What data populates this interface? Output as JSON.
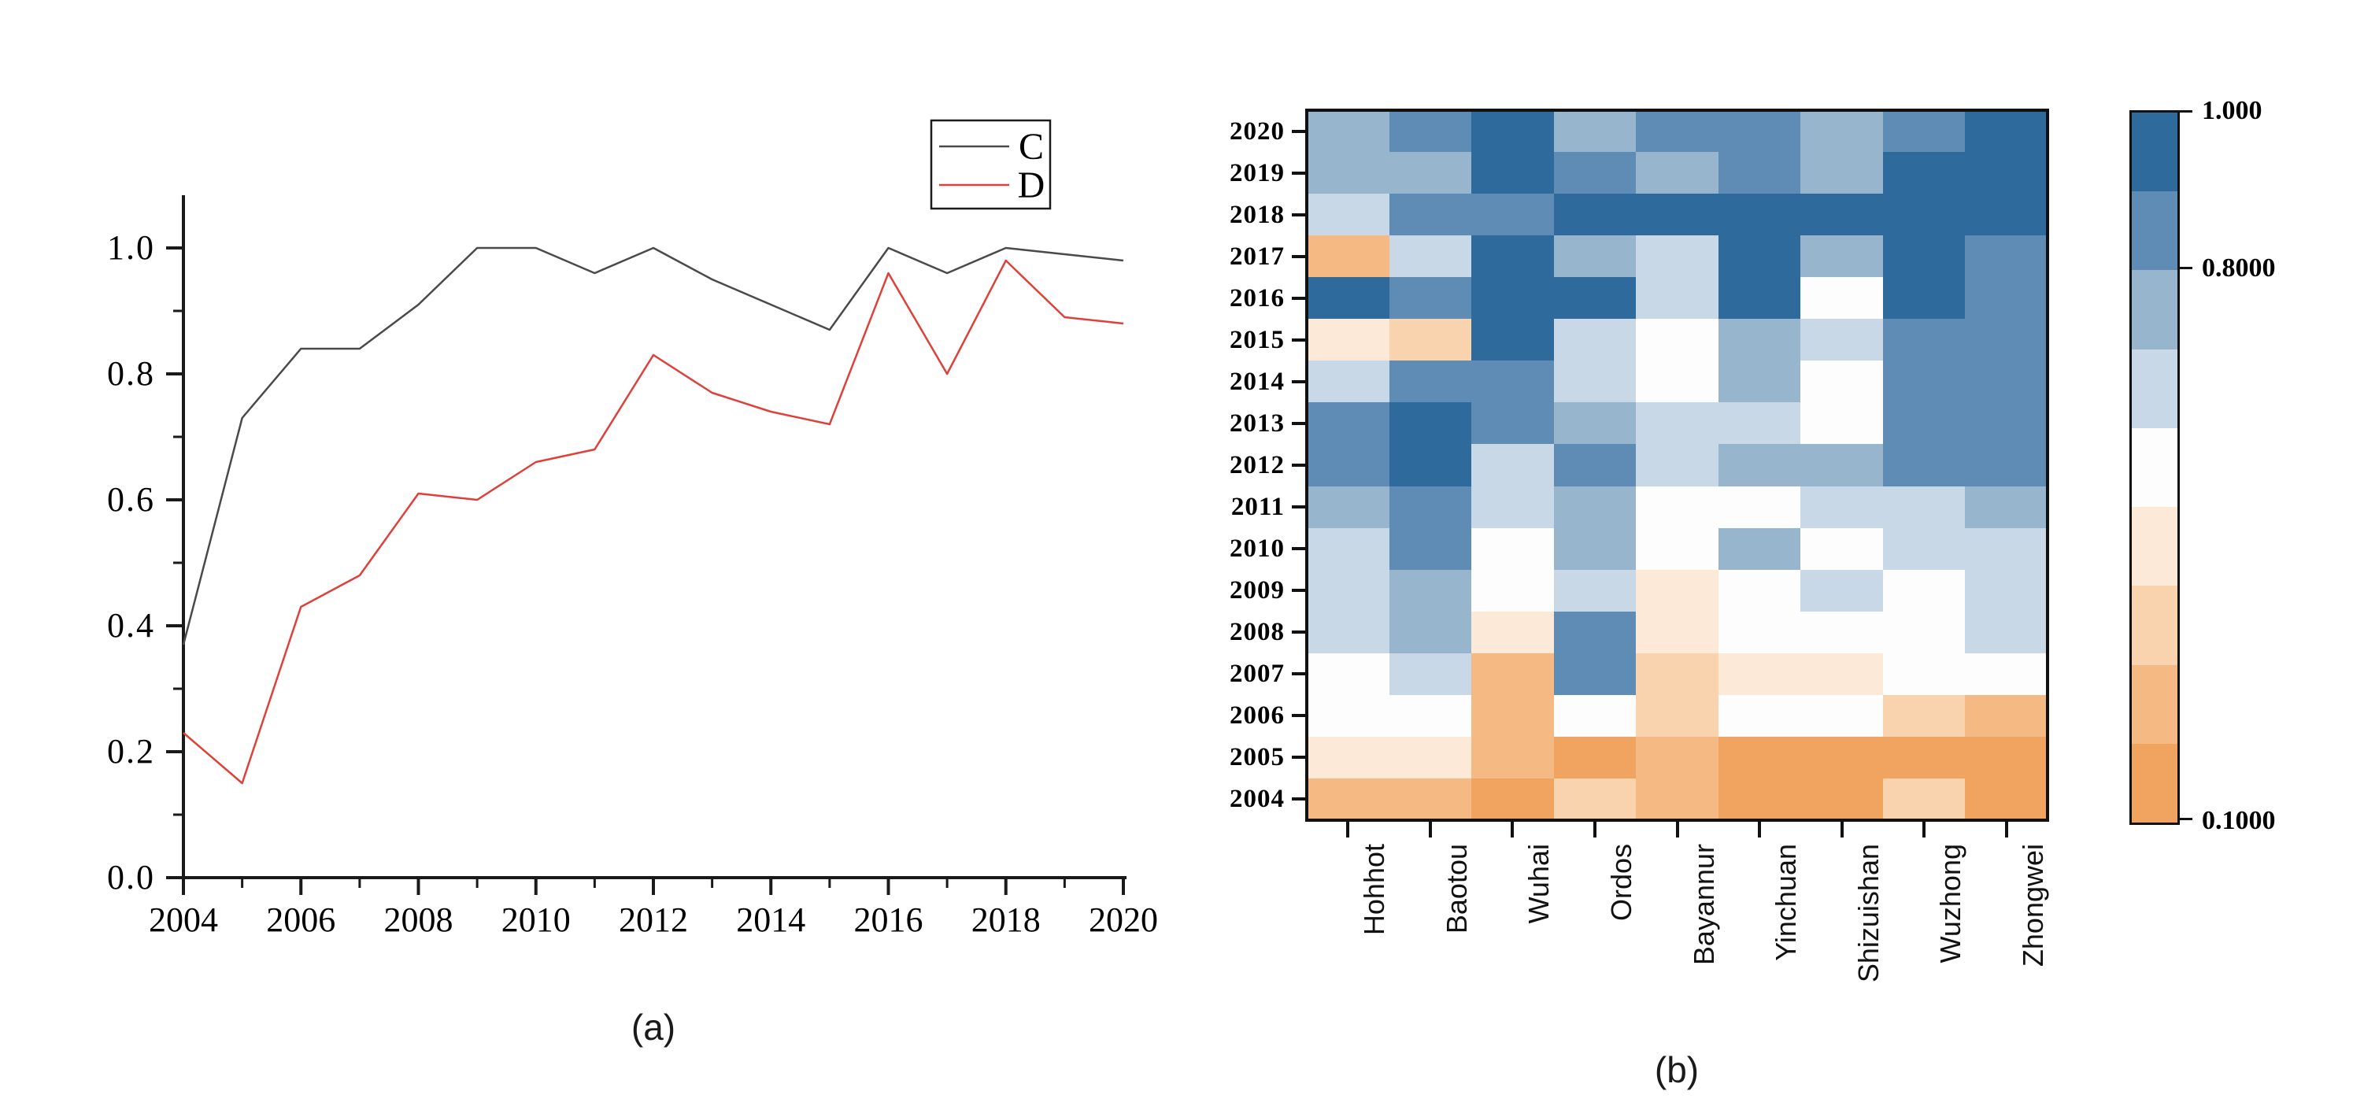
{
  "figure": {
    "panel_a": {
      "caption": "(a)",
      "legend": [
        {
          "label": "C",
          "color": "#4a4a4a"
        },
        {
          "label": "D",
          "color": "#e0403a"
        }
      ],
      "x_tick_labels": [
        "2004",
        "2006",
        "2008",
        "2010",
        "2012",
        "2014",
        "2016",
        "2018",
        "2020"
      ],
      "y_tick_labels": [
        "0.0",
        "0.2",
        "0.4",
        "0.6",
        "0.8",
        "1.0"
      ],
      "chart_data": {
        "type": "line",
        "x": [
          2004,
          2005,
          2006,
          2007,
          2008,
          2009,
          2010,
          2011,
          2012,
          2013,
          2014,
          2015,
          2016,
          2017,
          2018,
          2019,
          2020
        ],
        "series": [
          {
            "name": "C",
            "color": "#4a4a4a",
            "values": [
              0.37,
              0.73,
              0.84,
              0.84,
              0.91,
              1.0,
              1.0,
              0.96,
              1.0,
              0.95,
              0.91,
              0.87,
              1.0,
              0.96,
              1.0,
              0.99,
              0.98
            ]
          },
          {
            "name": "D",
            "color": "#e0403a",
            "values": [
              0.23,
              0.15,
              0.43,
              0.48,
              0.61,
              0.6,
              0.66,
              0.68,
              0.83,
              0.77,
              0.74,
              0.72,
              0.96,
              0.8,
              0.98,
              0.89,
              0.88
            ]
          }
        ],
        "xlim": [
          2004,
          2020
        ],
        "ylim": [
          0.0,
          1.1
        ],
        "grid": "off",
        "legend_position": "top-right"
      }
    },
    "panel_b": {
      "caption": "(b)",
      "chart_data": {
        "type": "heatmap",
        "rows": [
          "2020",
          "2019",
          "2018",
          "2017",
          "2016",
          "2015",
          "2014",
          "2013",
          "2012",
          "2011",
          "2010",
          "2009",
          "2008",
          "2007",
          "2006",
          "2005",
          "2004"
        ],
        "columns": [
          "Hohhot",
          "Baotou",
          "Wuhai",
          "Ordos",
          "Bayannur",
          "Yinchuan",
          "Shizuishan",
          "Wuzhong",
          "Zhongwei"
        ],
        "values": [
          [
            0.75,
            0.85,
            0.95,
            0.75,
            0.85,
            0.85,
            0.75,
            0.85,
            0.95
          ],
          [
            0.75,
            0.75,
            0.95,
            0.85,
            0.75,
            0.85,
            0.75,
            0.95,
            0.95
          ],
          [
            0.65,
            0.85,
            0.85,
            0.95,
            0.95,
            0.95,
            0.95,
            0.95,
            0.95
          ],
          [
            0.25,
            0.65,
            0.95,
            0.75,
            0.65,
            0.95,
            0.75,
            0.95,
            0.85
          ],
          [
            0.95,
            0.85,
            0.95,
            0.95,
            0.65,
            0.95,
            0.55,
            0.95,
            0.85
          ],
          [
            0.45,
            0.35,
            0.95,
            0.65,
            0.55,
            0.75,
            0.65,
            0.85,
            0.85
          ],
          [
            0.65,
            0.85,
            0.85,
            0.65,
            0.55,
            0.75,
            0.55,
            0.85,
            0.85
          ],
          [
            0.85,
            0.95,
            0.85,
            0.75,
            0.65,
            0.65,
            0.55,
            0.85,
            0.85
          ],
          [
            0.85,
            0.95,
            0.65,
            0.85,
            0.65,
            0.75,
            0.75,
            0.85,
            0.85
          ],
          [
            0.75,
            0.85,
            0.65,
            0.75,
            0.55,
            0.55,
            0.65,
            0.65,
            0.75
          ],
          [
            0.65,
            0.85,
            0.55,
            0.75,
            0.55,
            0.75,
            0.55,
            0.65,
            0.65
          ],
          [
            0.65,
            0.75,
            0.55,
            0.65,
            0.45,
            0.55,
            0.65,
            0.55,
            0.65
          ],
          [
            0.65,
            0.75,
            0.45,
            0.85,
            0.45,
            0.55,
            0.55,
            0.55,
            0.65
          ],
          [
            0.55,
            0.65,
            0.25,
            0.85,
            0.35,
            0.45,
            0.45,
            0.55,
            0.55
          ],
          [
            0.55,
            0.55,
            0.25,
            0.55,
            0.35,
            0.55,
            0.55,
            0.35,
            0.25
          ],
          [
            0.45,
            0.45,
            0.25,
            0.15,
            0.25,
            0.15,
            0.15,
            0.15,
            0.15
          ],
          [
            0.25,
            0.25,
            0.15,
            0.35,
            0.25,
            0.15,
            0.15,
            0.35,
            0.15
          ]
        ],
        "scale_min": 0.1,
        "scale_max": 1.0,
        "palette_low_to_high": [
          "#f0a45f",
          "#f5ba84",
          "#f9d2ae",
          "#fce9d7",
          "#fdfdfd",
          "#c8d8e6",
          "#98b5ce",
          "#5f8cb4",
          "#2e6a9c"
        ],
        "colorbar_ticks": [
          {
            "label": "1.000",
            "value": 1.0
          },
          {
            "label": "0.8000",
            "value": 0.8
          },
          {
            "label": "0.1000",
            "value": 0.1
          }
        ]
      }
    }
  }
}
